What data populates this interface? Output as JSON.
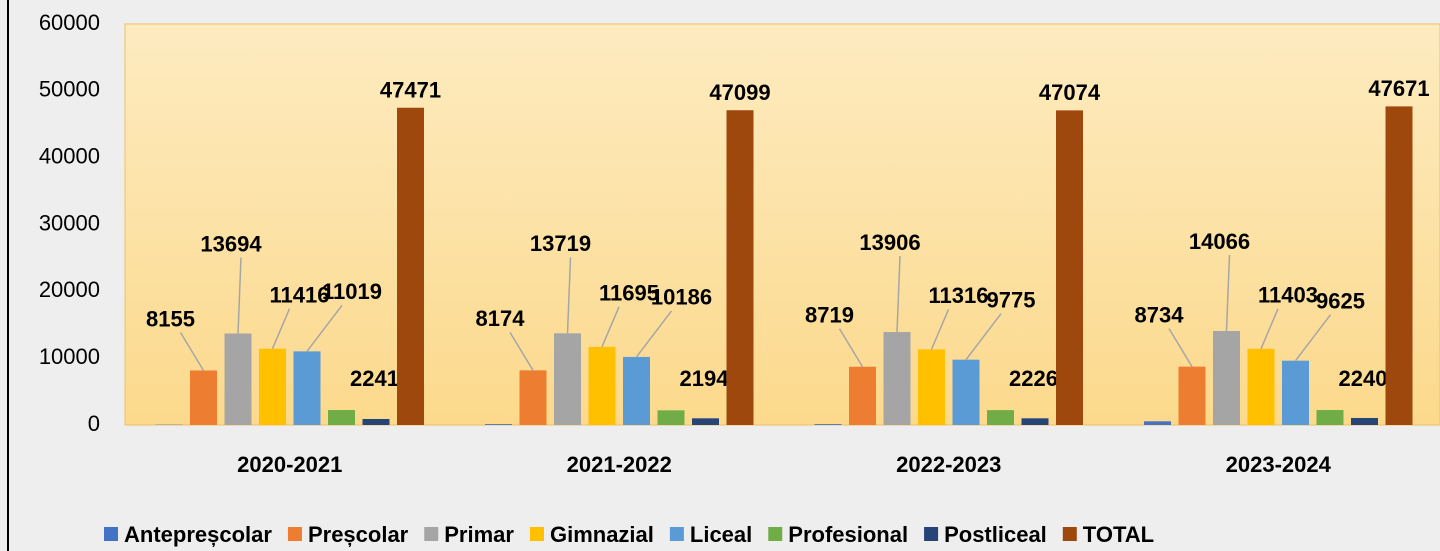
{
  "chart_data": {
    "type": "bar",
    "categories": [
      "2020-2021",
      "2021-2022",
      "2022-2023",
      "2023-2024"
    ],
    "series": [
      {
        "name": "Antepreșcolar",
        "color": "#4472c4",
        "values": [
          46,
          131,
          132,
          553
        ]
      },
      {
        "name": "Preșcolar",
        "color": "#ed7d31",
        "values": [
          8155,
          8174,
          8719,
          8734
        ]
      },
      {
        "name": "Primar",
        "color": "#a5a5a5",
        "values": [
          13694,
          13719,
          13906,
          14066
        ]
      },
      {
        "name": "Gimnazial",
        "color": "#ffc000",
        "values": [
          11416,
          11695,
          11316,
          11403
        ]
      },
      {
        "name": "Liceal",
        "color": "#5b9bd5",
        "values": [
          11019,
          10186,
          9775,
          9625
        ]
      },
      {
        "name": "Profesional",
        "color": "#70ad47",
        "values": [
          2241,
          2194,
          2226,
          2240
        ]
      },
      {
        "name": "Postliceal",
        "color": "#264478",
        "values": [
          900,
          1000,
          1000,
          1050
        ]
      },
      {
        "name": "TOTAL",
        "color": "#9e480e",
        "values": [
          47471,
          47099,
          47074,
          47671
        ]
      }
    ],
    "labeled_series": [
      1,
      2,
      3,
      4,
      5,
      7
    ],
    "ylim": [
      0,
      60000
    ],
    "yticks": [
      0,
      10000,
      20000,
      30000,
      40000,
      50000,
      60000
    ],
    "legend": "bottom"
  }
}
